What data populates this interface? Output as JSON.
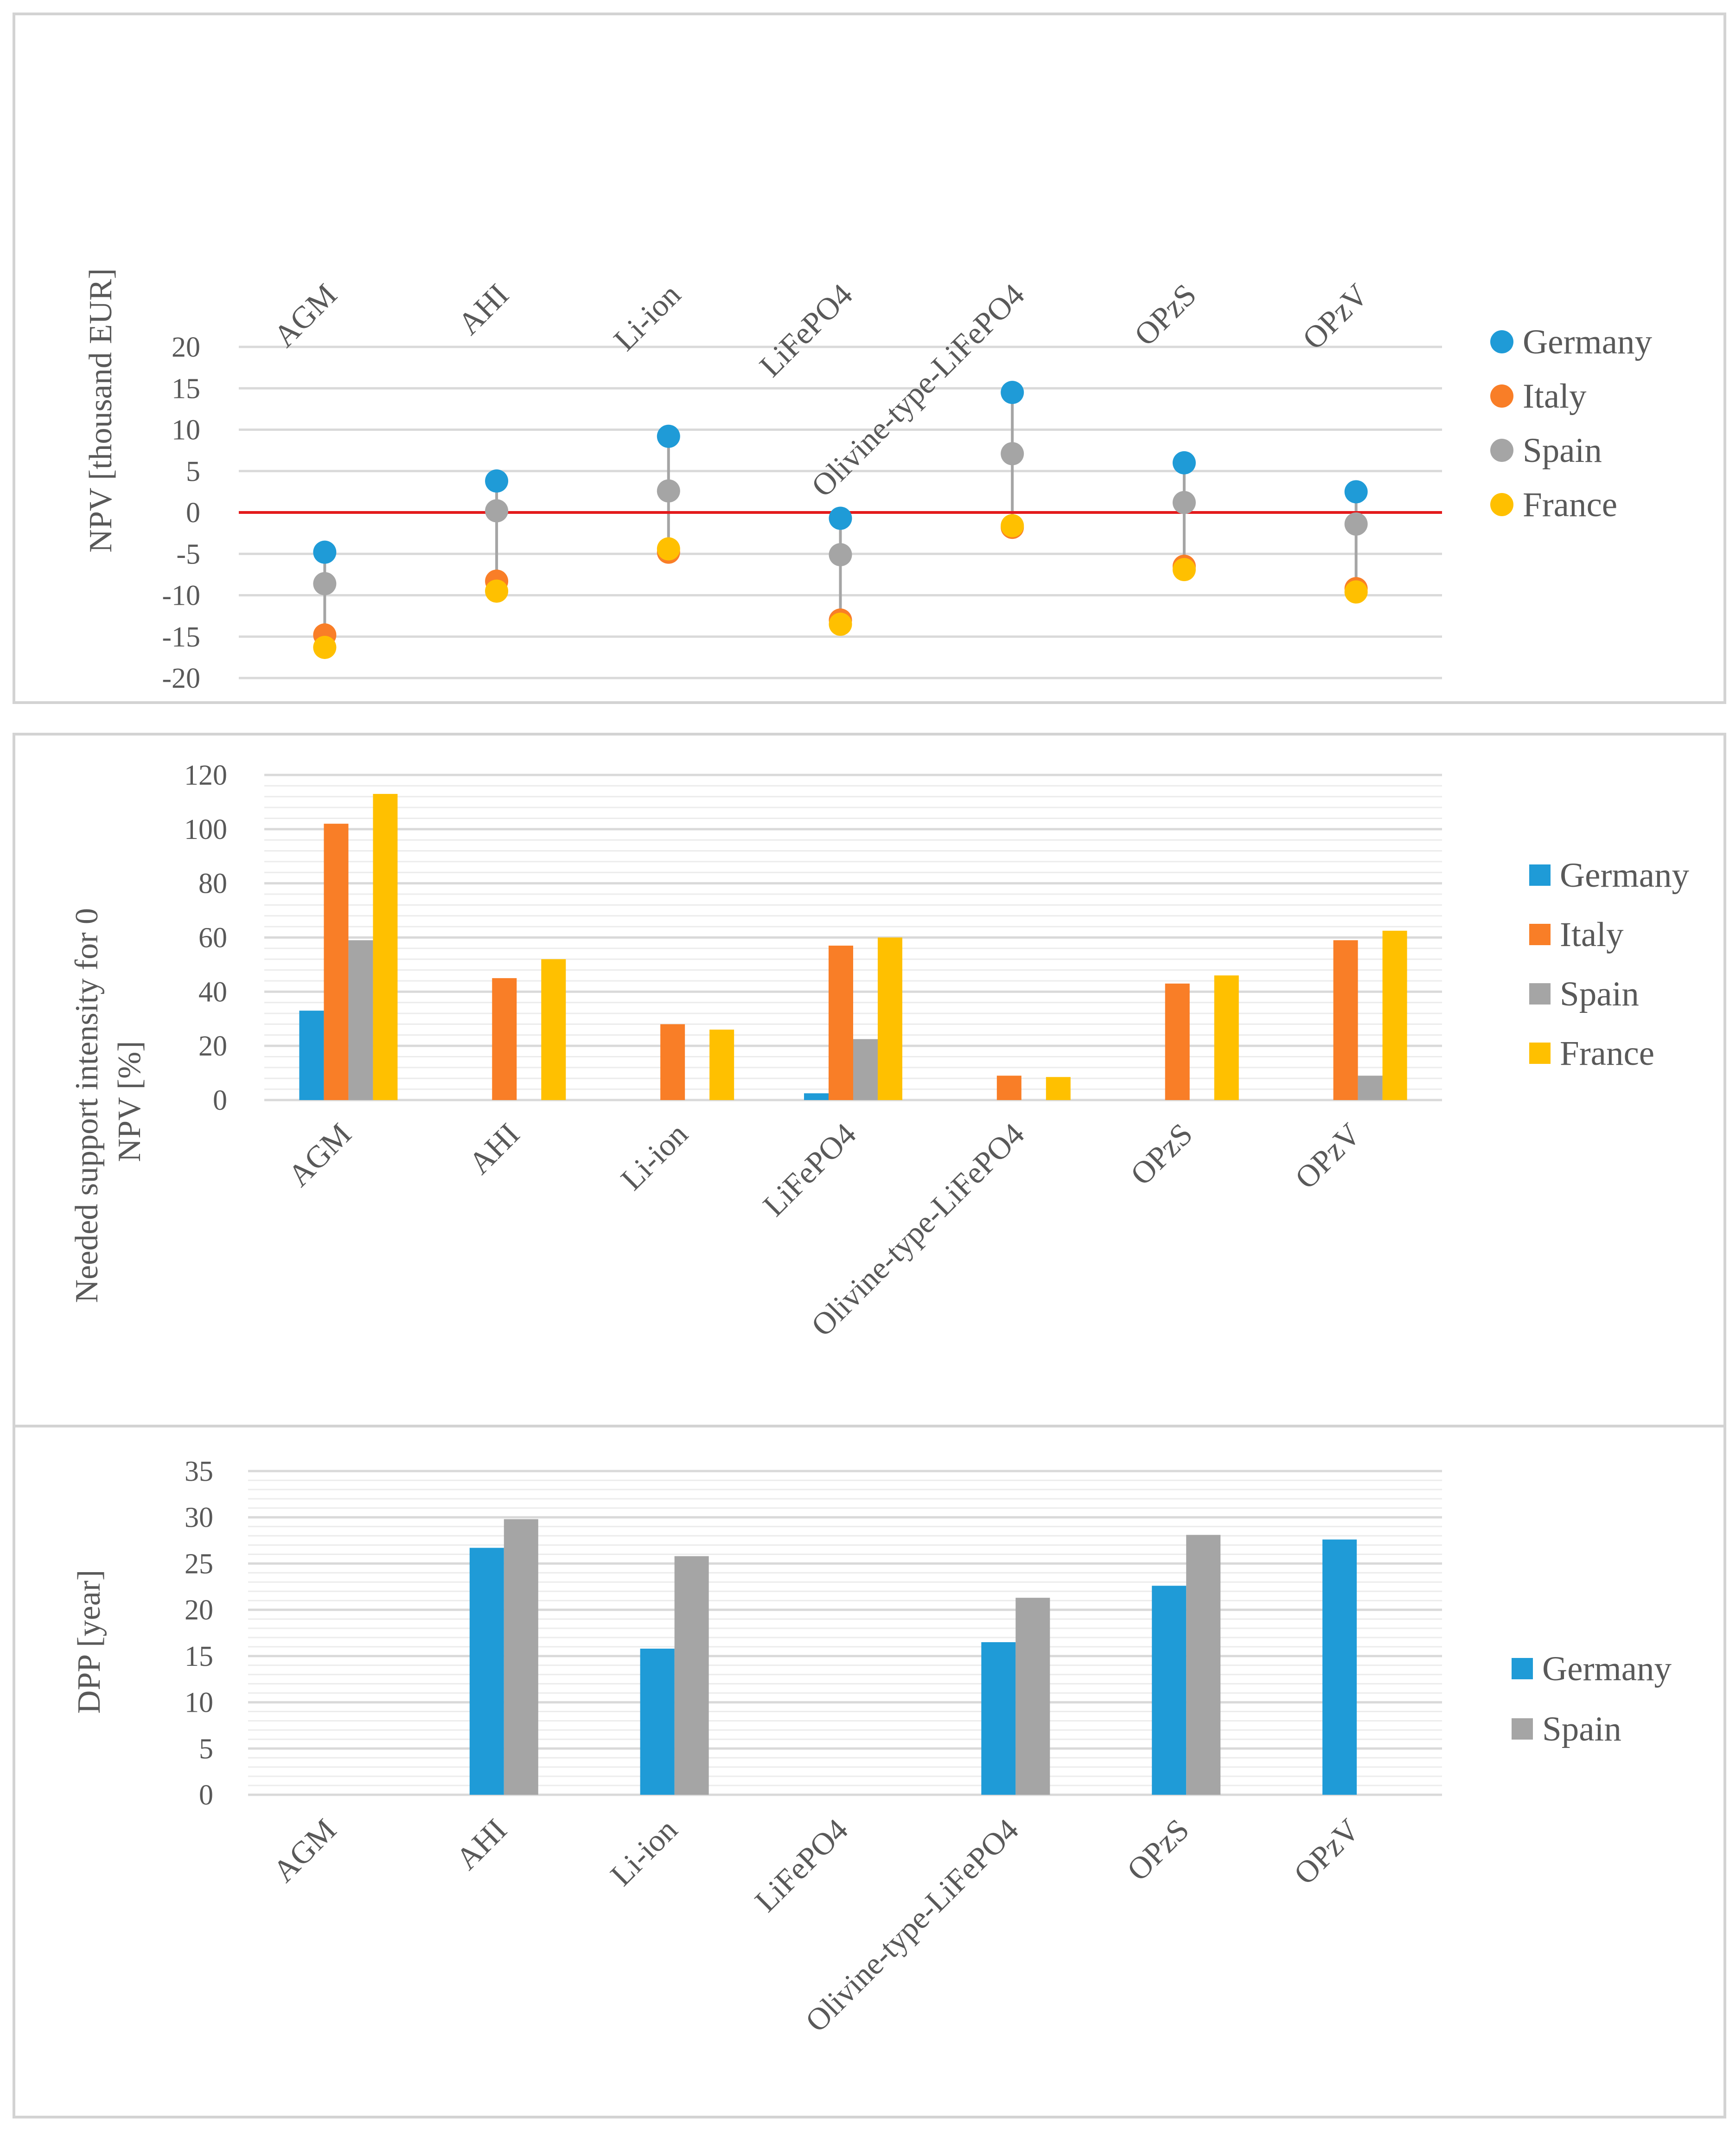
{
  "colors": {
    "Germany": "#1f9bd7",
    "Italy": "#f97e27",
    "Spain": "#a5a5a5",
    "France": "#ffc000",
    "zero_line": "#e31a1c"
  },
  "chart_data": [
    {
      "type": "scatter",
      "title": "",
      "ylabel": "NPV [thousand EUR]",
      "xlabel": "",
      "ylim": [
        -20,
        20
      ],
      "ytick_step": 5,
      "categories": [
        "AGM",
        "AHI",
        "Li-ion",
        "LiFePO4",
        "Olivine-type-LiFePO4",
        "OPzS",
        "OPzV"
      ],
      "legend_position": "right",
      "series": [
        {
          "name": "Germany",
          "values": [
            -4.8,
            3.8,
            9.2,
            -0.7,
            14.5,
            6.0,
            2.5
          ]
        },
        {
          "name": "Italy",
          "values": [
            -14.8,
            -8.3,
            -4.8,
            -13.0,
            -1.8,
            -6.5,
            -9.2
          ]
        },
        {
          "name": "Spain",
          "values": [
            -8.6,
            0.2,
            2.6,
            -5.1,
            7.1,
            1.2,
            -1.4
          ]
        },
        {
          "name": "France",
          "values": [
            -16.3,
            -9.5,
            -4.4,
            -13.5,
            -1.6,
            -6.9,
            -9.6
          ]
        }
      ]
    },
    {
      "type": "bar",
      "title": "",
      "ylabel_lines": [
        "Needed support intensity for 0",
        "NPV [%]"
      ],
      "xlabel": "",
      "ylim": [
        0,
        120
      ],
      "ytick_step": 20,
      "categories": [
        "AGM",
        "AHI",
        "Li-ion",
        "LiFePO4",
        "Olivine-type-LiFePO4",
        "OPzS",
        "OPzV"
      ],
      "legend_position": "right",
      "series": [
        {
          "name": "Germany",
          "values": [
            33,
            0,
            0,
            2.5,
            0,
            0,
            0
          ]
        },
        {
          "name": "Italy",
          "values": [
            102,
            45,
            28,
            57,
            9,
            43,
            59
          ]
        },
        {
          "name": "Spain",
          "values": [
            59,
            0,
            0,
            22.5,
            0,
            0,
            9
          ]
        },
        {
          "name": "France",
          "values": [
            113,
            52,
            26,
            60,
            8.5,
            46,
            62.5
          ]
        }
      ]
    },
    {
      "type": "bar",
      "title": "",
      "ylabel": "DPP [year]",
      "xlabel": "",
      "ylim": [
        0,
        35
      ],
      "ytick_step": 5,
      "categories": [
        "AGM",
        "AHI",
        "Li-ion",
        "LiFePO4",
        "Olivine-type-LiFePO4",
        "OPzS",
        "OPzV"
      ],
      "legend_position": "right",
      "series": [
        {
          "name": "Germany",
          "values": [
            0,
            26.7,
            15.8,
            0,
            16.5,
            22.6,
            27.6
          ]
        },
        {
          "name": "Spain",
          "values": [
            0,
            29.8,
            25.8,
            0,
            21.3,
            28.1,
            0
          ]
        }
      ]
    }
  ]
}
